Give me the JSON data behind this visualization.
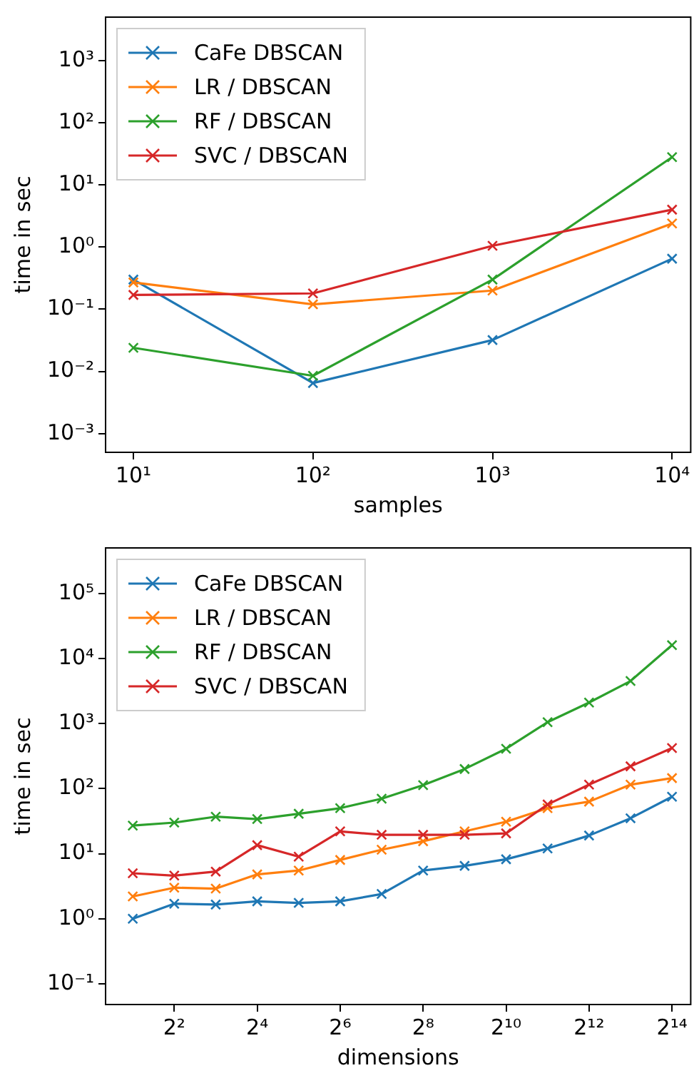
{
  "chart_data": [
    {
      "type": "line",
      "xlabel": "samples",
      "ylabel": "time in sec",
      "log": "xy",
      "grid": false,
      "legend": "top left",
      "marker": "cross",
      "line_style": "solid",
      "x": [
        10,
        100,
        1000,
        10000
      ],
      "xlim": [
        7,
        12700
      ],
      "ylim": [
        0.0005,
        5000
      ],
      "xticks": [
        {
          "value": 10,
          "label": "10¹"
        },
        {
          "value": 100,
          "label": "10²"
        },
        {
          "value": 1000,
          "label": "10³"
        },
        {
          "value": 10000,
          "label": "10⁴"
        }
      ],
      "yticks": [
        {
          "value": 0.001,
          "label": "10⁻³"
        },
        {
          "value": 0.01,
          "label": "10⁻²"
        },
        {
          "value": 0.1,
          "label": "10⁻¹"
        },
        {
          "value": 1,
          "label": "10⁰"
        },
        {
          "value": 10,
          "label": "10¹"
        },
        {
          "value": 100,
          "label": "10²"
        },
        {
          "value": 1000,
          "label": "10³"
        }
      ],
      "series": [
        {
          "name": "CaFe DBSCAN",
          "color": "#1f77b4",
          "values": [
            0.3,
            0.0065,
            0.032,
            0.65
          ]
        },
        {
          "name": "LR / DBSCAN",
          "color": "#ff7f0e",
          "values": [
            0.27,
            0.12,
            0.2,
            2.4
          ]
        },
        {
          "name": "RF / DBSCAN",
          "color": "#2ca02c",
          "values": [
            0.024,
            0.0085,
            0.3,
            28
          ]
        },
        {
          "name": "SVC / DBSCAN",
          "color": "#d62728",
          "values": [
            0.17,
            0.18,
            1.05,
            4
          ]
        }
      ]
    },
    {
      "type": "line",
      "xlabel": "dimensions",
      "ylabel": "time in sec",
      "log": "xy",
      "grid": false,
      "legend": "top left",
      "marker": "cross",
      "line_style": "solid",
      "x": [
        2,
        4,
        8,
        16,
        32,
        64,
        128,
        256,
        512,
        1024,
        2048,
        4096,
        8192,
        16384
      ],
      "xlim": [
        1.27,
        22400
      ],
      "ylim": [
        0.048,
        500000
      ],
      "xticks": [
        {
          "value": 4,
          "label": "2²"
        },
        {
          "value": 16,
          "label": "2⁴"
        },
        {
          "value": 64,
          "label": "2⁶"
        },
        {
          "value": 256,
          "label": "2⁸"
        },
        {
          "value": 1024,
          "label": "2¹⁰"
        },
        {
          "value": 4096,
          "label": "2¹²"
        },
        {
          "value": 16384,
          "label": "2¹⁴"
        }
      ],
      "yticks": [
        {
          "value": 0.1,
          "label": "10⁻¹"
        },
        {
          "value": 1,
          "label": "10⁰"
        },
        {
          "value": 10,
          "label": "10¹"
        },
        {
          "value": 100,
          "label": "10²"
        },
        {
          "value": 1000,
          "label": "10³"
        },
        {
          "value": 10000,
          "label": "10⁴"
        },
        {
          "value": 100000,
          "label": "10⁵"
        }
      ],
      "series": [
        {
          "name": "CaFe DBSCAN",
          "color": "#1f77b4",
          "values": [
            1.0,
            1.7,
            1.65,
            1.85,
            1.75,
            1.85,
            2.4,
            5.5,
            6.5,
            8.2,
            12,
            19,
            35,
            75
          ]
        },
        {
          "name": "LR / DBSCAN",
          "color": "#ff7f0e",
          "values": [
            2.2,
            3.0,
            2.9,
            4.8,
            5.5,
            8,
            11.5,
            15.5,
            22,
            31,
            50,
            63,
            115,
            145
          ]
        },
        {
          "name": "RF / DBSCAN",
          "color": "#2ca02c",
          "values": [
            27,
            30,
            37,
            34,
            41,
            50,
            70,
            113,
            200,
            410,
            1050,
            2100,
            4500,
            16000
          ]
        },
        {
          "name": "SVC / DBSCAN",
          "color": "#d62728",
          "values": [
            5.0,
            4.6,
            5.3,
            13.5,
            9.0,
            22,
            19.5,
            19.5,
            19.5,
            20.5,
            57,
            115,
            220,
            420
          ]
        }
      ]
    }
  ]
}
